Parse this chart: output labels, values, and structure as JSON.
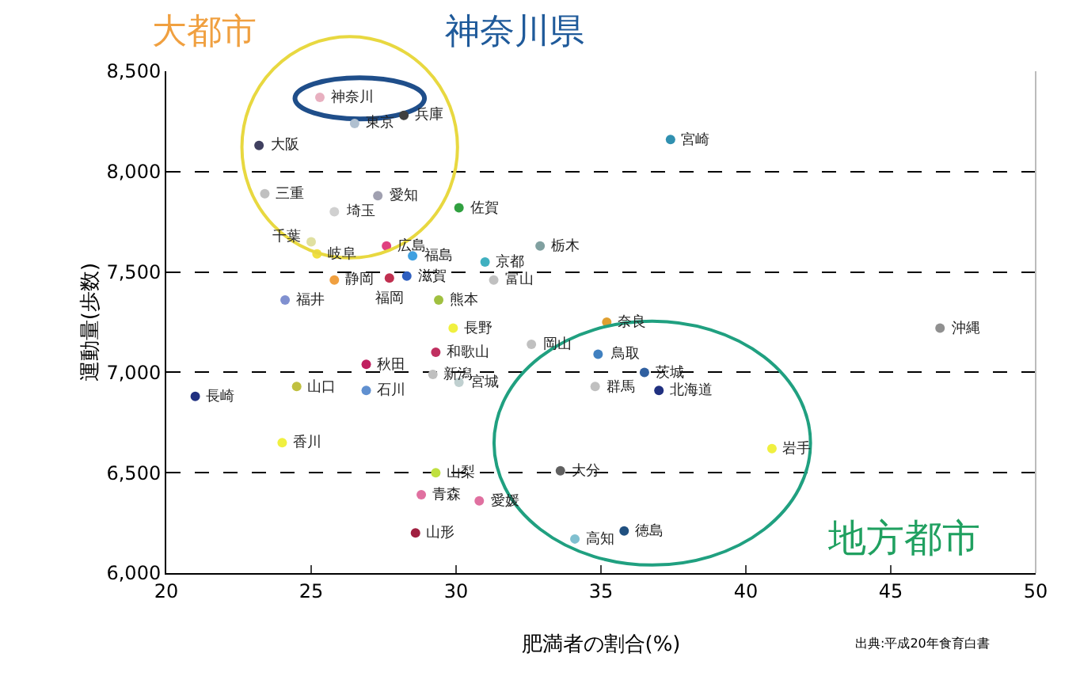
{
  "chart_data": {
    "type": "scatter",
    "xlabel": "肥満者の割合(%)",
    "ylabel": "運動量(歩数)",
    "x": [
      25.3,
      28.2,
      26.5,
      23.2,
      23.4,
      27.3,
      25.8,
      30.1,
      25.0,
      25.2,
      27.6,
      28.5,
      31.0,
      25.8,
      28.3,
      27.7,
      24.1,
      29.4,
      31.3,
      32.9,
      37.4,
      29.9,
      29.3,
      26.9,
      24.5,
      26.9,
      29.2,
      30.1,
      21.0,
      24.0,
      29.3,
      28.8,
      30.8,
      28.6,
      32.6,
      35.2,
      34.9,
      36.5,
      34.8,
      37.0,
      40.9,
      33.6,
      34.1,
      35.8,
      46.7
    ],
    "values": [
      8370,
      8280,
      8240,
      8130,
      7890,
      7880,
      7800,
      7820,
      7650,
      7590,
      7630,
      7580,
      7550,
      7460,
      7480,
      7470,
      7360,
      7360,
      7460,
      7630,
      8160,
      7220,
      7100,
      7040,
      6930,
      6910,
      6990,
      6950,
      6880,
      6650,
      6500,
      6390,
      6360,
      6200,
      7140,
      7250,
      7090,
      7000,
      6930,
      6910,
      6620,
      6510,
      6170,
      6210,
      7220
    ],
    "colors": [
      "#e8b0c0",
      "#404040",
      "#b0c0d0",
      "#404060",
      "#c0c0c0",
      "#a0a0b0",
      "#d0d0d0",
      "#30a040",
      "#e0e0a0",
      "#f0e040",
      "#e04080",
      "#40a0e0",
      "#40b0c0",
      "#f0a040",
      "#3060c0",
      "#c03050",
      "#8090d0",
      "#a0c040",
      "#c0c0c0",
      "#80a0a0",
      "#3090b0",
      "#f0f040",
      "#c03060",
      "#c02060",
      "#c0c040",
      "#6090d0",
      "#c0c0c0",
      "#c0d0d0",
      "#203080",
      "#f0f040",
      "#c0e040",
      "#e070a0",
      "#e070a0",
      "#a02040",
      "#c0c0c0",
      "#e0a030",
      "#4080c0",
      "#3060a0",
      "#c0c0c0",
      "#203080",
      "#f0f040",
      "#606060",
      "#80c0d0",
      "#205080",
      "#909090"
    ],
    "xlim": [
      20,
      50
    ],
    "xticks": [
      20,
      25,
      30,
      35,
      40,
      45,
      50
    ],
    "ylim": [
      6000,
      8500
    ],
    "yticks": [
      {
        "value": 6000,
        "label": "6,000"
      },
      {
        "value": 6500,
        "label": "6,500"
      },
      {
        "value": 7000,
        "label": "7,000"
      },
      {
        "value": 7500,
        "label": "7,500"
      },
      {
        "value": 8000,
        "label": "8,000"
      },
      {
        "value": 8500,
        "label": "8,500"
      }
    ],
    "grid": "y",
    "marker": "circle",
    "annotations": [
      {
        "text": "神奈川",
        "x": 25.3,
        "y": 8370
      },
      {
        "text": "兵庫",
        "x": 28.2,
        "y": 8280
      },
      {
        "text": "東京",
        "x": 26.5,
        "y": 8240
      },
      {
        "text": "大阪",
        "x": 23.2,
        "y": 8130
      },
      {
        "text": "三重",
        "x": 23.4,
        "y": 7890
      },
      {
        "text": "愛知",
        "x": 27.3,
        "y": 7880
      },
      {
        "text": "埼玉",
        "x": 25.8,
        "y": 7800
      },
      {
        "text": "佐賀",
        "x": 30.1,
        "y": 7820
      },
      {
        "text": "千葉",
        "x": 25.0,
        "y": 7650
      },
      {
        "text": "岐阜",
        "x": 25.2,
        "y": 7590
      },
      {
        "text": "広島",
        "x": 27.6,
        "y": 7630
      },
      {
        "text": "福島",
        "x": 28.5,
        "y": 7580
      },
      {
        "text": "京都",
        "x": 31.0,
        "y": 7550
      },
      {
        "text": "静岡",
        "x": 25.8,
        "y": 7460
      },
      {
        "text": "滋賀",
        "x": 28.3,
        "y": 7480
      },
      {
        "text": "福岡",
        "x": 27.7,
        "y": 7470
      },
      {
        "text": "福井",
        "x": 24.1,
        "y": 7360
      },
      {
        "text": "熊本",
        "x": 29.4,
        "y": 7360
      },
      {
        "text": "富山",
        "x": 31.3,
        "y": 7460
      },
      {
        "text": "栃木",
        "x": 32.9,
        "y": 7630
      },
      {
        "text": "宮崎",
        "x": 37.4,
        "y": 8160
      },
      {
        "text": "長野",
        "x": 29.9,
        "y": 7220
      },
      {
        "text": "和歌山",
        "x": 29.3,
        "y": 7100
      },
      {
        "text": "秋田",
        "x": 26.9,
        "y": 7040
      },
      {
        "text": "山口",
        "x": 24.5,
        "y": 6930
      },
      {
        "text": "石川",
        "x": 26.9,
        "y": 6910
      },
      {
        "text": "新潟",
        "x": 29.2,
        "y": 6990
      },
      {
        "text": "宮城",
        "x": 30.1,
        "y": 6950
      },
      {
        "text": "長崎",
        "x": 21.0,
        "y": 6880
      },
      {
        "text": "香川",
        "x": 24.0,
        "y": 6650
      },
      {
        "text": "山梨",
        "x": 29.3,
        "y": 6500
      },
      {
        "text": "青森",
        "x": 28.8,
        "y": 6390
      },
      {
        "text": "愛媛",
        "x": 30.8,
        "y": 6360
      },
      {
        "text": "山形",
        "x": 28.6,
        "y": 6200
      },
      {
        "text": "岡山",
        "x": 32.6,
        "y": 7140
      },
      {
        "text": "奈良",
        "x": 35.2,
        "y": 7250
      },
      {
        "text": "鳥取",
        "x": 34.9,
        "y": 7090
      },
      {
        "text": "茨城",
        "x": 36.5,
        "y": 7000
      },
      {
        "text": "群馬",
        "x": 34.8,
        "y": 6930
      },
      {
        "text": "北海道",
        "x": 37.0,
        "y": 6910
      },
      {
        "text": "岩手",
        "x": 40.9,
        "y": 6620
      },
      {
        "text": "大分",
        "x": 33.6,
        "y": 6510
      },
      {
        "text": "高知",
        "x": 34.1,
        "y": 6170
      },
      {
        "text": "徳島",
        "x": 35.8,
        "y": 6210
      },
      {
        "text": "沖縄",
        "x": 46.7,
        "y": 7220
      },
      "大都市",
      "神奈川県",
      "地方都市",
      "出典:平成20年食育白書"
    ]
  }
}
